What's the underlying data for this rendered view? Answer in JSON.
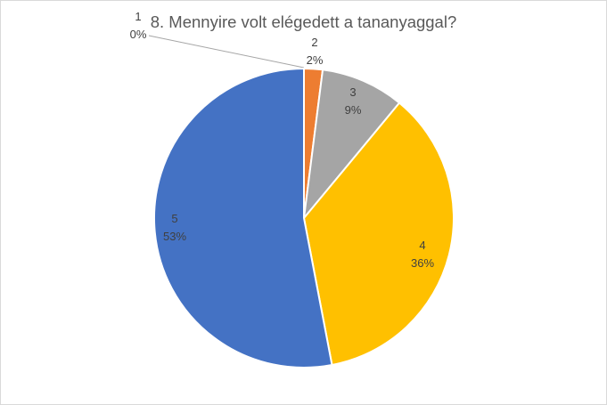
{
  "chart_data": {
    "type": "pie",
    "title": "8. Mennyire volt elégedett  a tananyaggal?",
    "slices": [
      {
        "category": "1",
        "value": 0,
        "label": "0%",
        "color": "#5B9BD5"
      },
      {
        "category": "2",
        "value": 2,
        "label": "2%",
        "color": "#ED7D31"
      },
      {
        "category": "3",
        "value": 9,
        "label": "9%",
        "color": "#A5A5A5"
      },
      {
        "category": "4",
        "value": 36,
        "label": "36%",
        "color": "#FFC000"
      },
      {
        "category": "5",
        "value": 53,
        "label": "53%",
        "color": "#4472C4"
      }
    ],
    "legend": "none"
  }
}
